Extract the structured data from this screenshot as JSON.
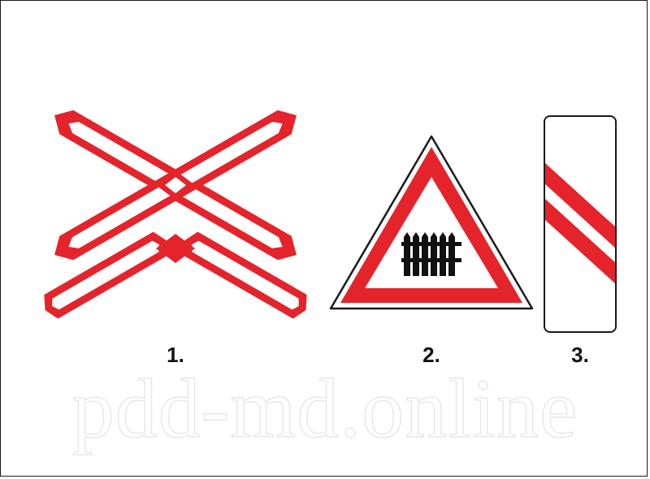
{
  "figure": {
    "labels": [
      "1.",
      "2.",
      "3."
    ],
    "watermark": "pdd-md.online"
  },
  "colors": {
    "sign_red": "#e4232a",
    "sign_white": "#ffffff",
    "outline": "#1a1a1a",
    "label_text": "#111111"
  },
  "icons": {
    "sign1": "double-track-railway-crossing-cross-sign",
    "sign2": "railway-crossing-with-barrier-warning-sign",
    "sign3": "railway-crossing-approach-countdown-post"
  }
}
